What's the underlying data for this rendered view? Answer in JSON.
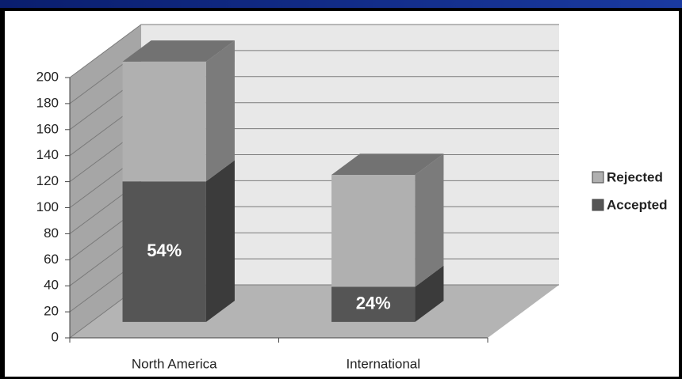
{
  "chart_data": {
    "type": "bar3d-stacked",
    "categories": [
      "North America",
      "International"
    ],
    "series": [
      {
        "name": "Accepted",
        "color": "#555555",
        "values": [
          108,
          27
        ]
      },
      {
        "name": "Rejected",
        "color": "#b0b0b0",
        "values": [
          92,
          86
        ]
      }
    ],
    "annotations": [
      "54%",
      "24%"
    ],
    "ylim": [
      0,
      200
    ],
    "yticks": [
      0,
      20,
      40,
      60,
      80,
      100,
      120,
      140,
      160,
      180,
      200
    ],
    "grid": true,
    "legend": "right"
  }
}
